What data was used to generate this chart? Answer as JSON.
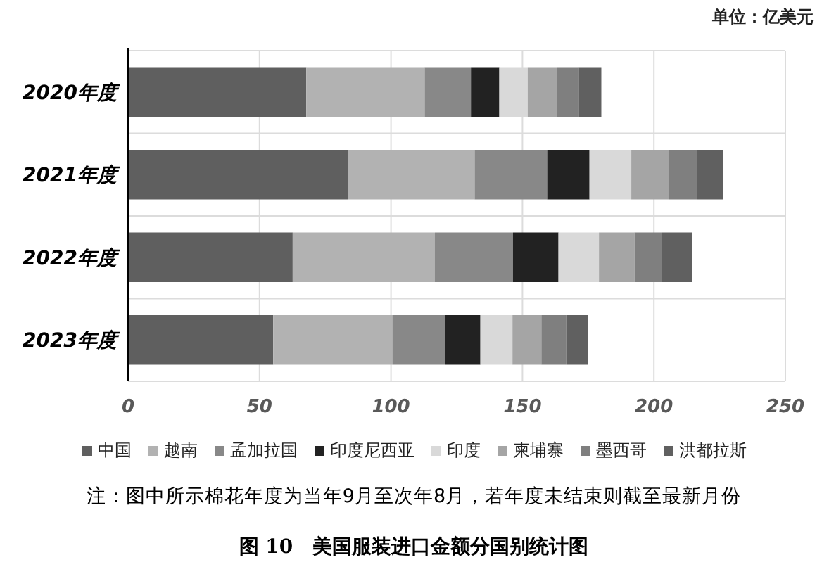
{
  "chart_data": {
    "type": "bar",
    "orientation": "horizontal",
    "stacked": true,
    "title": "图 10　美国服装进口金额分国别统计图",
    "annotations": [
      "单位：亿美元",
      "注：图中所示棉花年度为当年9月至次年8月，若年度未结束则截至最新月份"
    ],
    "categories": [
      "2020年度",
      "2021年度",
      "2022年度",
      "2023年度"
    ],
    "series": [
      {
        "name": "中国",
        "color": "#5f5f5f",
        "values": [
          67.8,
          83.6,
          62.6,
          55.2
        ]
      },
      {
        "name": "越南",
        "color": "#b2b2b2",
        "values": [
          45.0,
          48.2,
          54.1,
          45.3
        ]
      },
      {
        "name": "孟加拉国",
        "color": "#888888",
        "values": [
          17.6,
          27.6,
          29.7,
          20.2
        ]
      },
      {
        "name": "印度尼西亚",
        "color": "#222222",
        "values": [
          10.8,
          16.1,
          17.3,
          13.3
        ]
      },
      {
        "name": "印度",
        "color": "#d9d9d9",
        "values": [
          10.8,
          15.9,
          15.4,
          12.2
        ]
      },
      {
        "name": "柬埔寨",
        "color": "#a5a5a5",
        "values": [
          11.1,
          14.4,
          13.5,
          11.0
        ]
      },
      {
        "name": "墨西哥",
        "color": "#7f7f7f",
        "values": [
          8.3,
          10.6,
          10.3,
          9.5
        ]
      },
      {
        "name": "洪都拉斯",
        "color": "#606060",
        "values": [
          8.6,
          9.9,
          11.7,
          8.1
        ]
      }
    ],
    "xlim": [
      0,
      250
    ],
    "xticks": [
      0,
      50,
      100,
      150,
      200,
      250
    ],
    "grid": true,
    "legend": "bottom"
  }
}
